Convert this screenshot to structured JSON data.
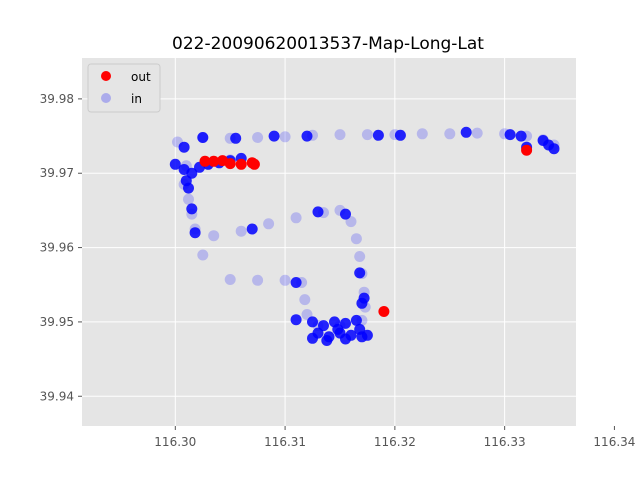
{
  "chart_data": {
    "type": "scatter",
    "title": "022-20090620013537-Map-Long-Lat",
    "xlabel": "",
    "ylabel": "",
    "xlim": [
      116.2915,
      116.3365
    ],
    "ylim": [
      39.936,
      39.9855
    ],
    "xticks": [
      116.3,
      116.31,
      116.32,
      116.33,
      116.34
    ],
    "xtick_labels": [
      "116.30",
      "116.31",
      "116.32",
      "116.33",
      "116.34"
    ],
    "yticks": [
      39.94,
      39.95,
      39.96,
      39.97,
      39.98
    ],
    "ytick_labels": [
      "39.94",
      "39.95",
      "39.96",
      "39.97",
      "39.98"
    ],
    "grid": true,
    "legend_position": "top-left",
    "series": [
      {
        "name": "in",
        "color": "#0000ff",
        "alpha": 0.2,
        "points": [
          [
            116.3002,
            39.9742
          ],
          [
            116.3025,
            39.9748
          ],
          [
            116.305,
            39.9747
          ],
          [
            116.3075,
            39.9748
          ],
          [
            116.31,
            39.9749
          ],
          [
            116.3125,
            39.9751
          ],
          [
            116.315,
            39.9752
          ],
          [
            116.3175,
            39.9752
          ],
          [
            116.32,
            39.9752
          ],
          [
            116.3225,
            39.9753
          ],
          [
            116.325,
            39.9753
          ],
          [
            116.3275,
            39.9754
          ],
          [
            116.33,
            39.9753
          ],
          [
            116.332,
            39.975
          ],
          [
            116.3335,
            39.9745
          ],
          [
            116.3345,
            39.9738
          ],
          [
            116.332,
            39.9732
          ],
          [
            116.301,
            39.971
          ],
          [
            116.303,
            39.9712
          ],
          [
            116.305,
            39.9718
          ],
          [
            116.3008,
            39.9685
          ],
          [
            116.3012,
            39.9665
          ],
          [
            116.3015,
            39.9645
          ],
          [
            116.3018,
            39.9625
          ],
          [
            116.3035,
            39.9616
          ],
          [
            116.306,
            39.9622
          ],
          [
            116.3085,
            39.9632
          ],
          [
            116.311,
            39.964
          ],
          [
            116.3135,
            39.9647
          ],
          [
            116.315,
            39.965
          ],
          [
            116.316,
            39.9635
          ],
          [
            116.3165,
            39.9612
          ],
          [
            116.3168,
            39.9588
          ],
          [
            116.317,
            39.9565
          ],
          [
            116.3172,
            39.954
          ],
          [
            116.3173,
            39.952
          ],
          [
            116.317,
            39.9502
          ],
          [
            116.3025,
            39.959
          ],
          [
            116.305,
            39.9557
          ],
          [
            116.3075,
            39.9556
          ],
          [
            116.31,
            39.9556
          ],
          [
            116.3115,
            39.9553
          ],
          [
            116.3118,
            39.953
          ],
          [
            116.312,
            39.951
          ],
          [
            116.313,
            39.9495
          ],
          [
            116.315,
            39.9495
          ]
        ]
      },
      {
        "name": "in",
        "color": "#0000ff",
        "alpha": 0.85,
        "points": [
          [
            116.3008,
            39.9735
          ],
          [
            116.3025,
            39.9748
          ],
          [
            116.3055,
            39.9747
          ],
          [
            116.309,
            39.975
          ],
          [
            116.312,
            39.975
          ],
          [
            116.3185,
            39.9751
          ],
          [
            116.3205,
            39.9751
          ],
          [
            116.3265,
            39.9755
          ],
          [
            116.3305,
            39.9752
          ],
          [
            116.3315,
            39.975
          ],
          [
            116.3335,
            39.9744
          ],
          [
            116.334,
            39.9738
          ],
          [
            116.3345,
            39.9733
          ],
          [
            116.332,
            39.9735
          ],
          [
            116.3,
            39.9712
          ],
          [
            116.3008,
            39.9705
          ],
          [
            116.3015,
            39.97
          ],
          [
            116.3022,
            39.9708
          ],
          [
            116.303,
            39.9712
          ],
          [
            116.304,
            39.9714
          ],
          [
            116.305,
            39.9717
          ],
          [
            116.306,
            39.972
          ],
          [
            116.301,
            39.969
          ],
          [
            116.3012,
            39.968
          ],
          [
            116.3015,
            39.9652
          ],
          [
            116.3018,
            39.962
          ],
          [
            116.307,
            39.9625
          ],
          [
            116.313,
            39.9648
          ],
          [
            116.3155,
            39.9645
          ],
          [
            116.3168,
            39.9566
          ],
          [
            116.3172,
            39.9532
          ],
          [
            116.317,
            39.9525
          ],
          [
            116.311,
            39.9553
          ],
          [
            116.311,
            39.9503
          ],
          [
            116.3125,
            39.95
          ],
          [
            116.3135,
            39.9495
          ],
          [
            116.3145,
            39.95
          ],
          [
            116.3155,
            39.9498
          ],
          [
            116.3165,
            39.9502
          ],
          [
            116.313,
            39.9485
          ],
          [
            116.314,
            39.948
          ],
          [
            116.315,
            39.9485
          ],
          [
            116.316,
            39.9482
          ],
          [
            116.317,
            39.948
          ],
          [
            116.3175,
            39.9482
          ],
          [
            116.3125,
            39.9478
          ],
          [
            116.3138,
            39.9475
          ],
          [
            116.3155,
            39.9477
          ],
          [
            116.3168,
            39.949
          ],
          [
            116.3148,
            39.949
          ]
        ]
      },
      {
        "name": "out",
        "color": "#ff0000",
        "alpha": 1.0,
        "points": [
          [
            116.3027,
            39.9716
          ],
          [
            116.3035,
            39.9716
          ],
          [
            116.3043,
            39.9717
          ],
          [
            116.305,
            39.9713
          ],
          [
            116.306,
            39.9712
          ],
          [
            116.307,
            39.9714
          ],
          [
            116.3072,
            39.9712
          ],
          [
            116.319,
            39.9514
          ],
          [
            116.332,
            39.9731
          ]
        ]
      }
    ],
    "legend": [
      {
        "label": "out",
        "color": "#ff0000",
        "alpha": 1.0
      },
      {
        "label": "in",
        "color": "#0000ff",
        "alpha": 0.25
      }
    ]
  }
}
